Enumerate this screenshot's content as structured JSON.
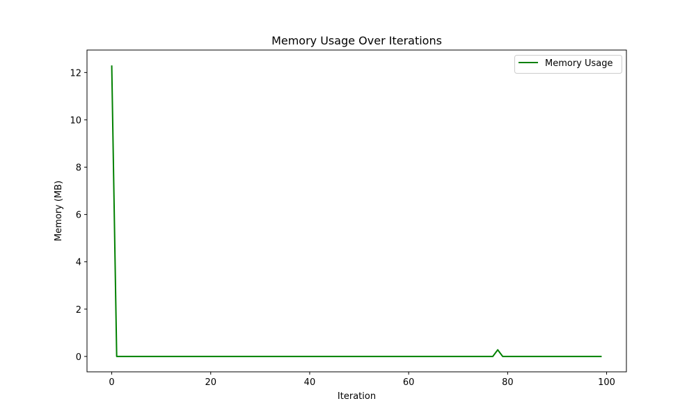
{
  "chart_data": {
    "type": "line",
    "title": "Memory Usage Over Iterations",
    "xlabel": "Iteration",
    "ylabel": "Memory (MB)",
    "xlim": [
      -5,
      104
    ],
    "ylim": [
      -0.65,
      12.95
    ],
    "x_ticks": [
      0,
      20,
      40,
      60,
      80,
      100
    ],
    "y_ticks": [
      0,
      2,
      4,
      6,
      8,
      10,
      12
    ],
    "grid": false,
    "legend": {
      "position": "top-right"
    },
    "series": [
      {
        "name": "Memory Usage",
        "color": "#008000",
        "x": [
          0,
          1,
          77,
          78,
          79,
          99
        ],
        "y": [
          12.3,
          0.0,
          0.0,
          0.28,
          0.0,
          0.0
        ]
      }
    ]
  }
}
